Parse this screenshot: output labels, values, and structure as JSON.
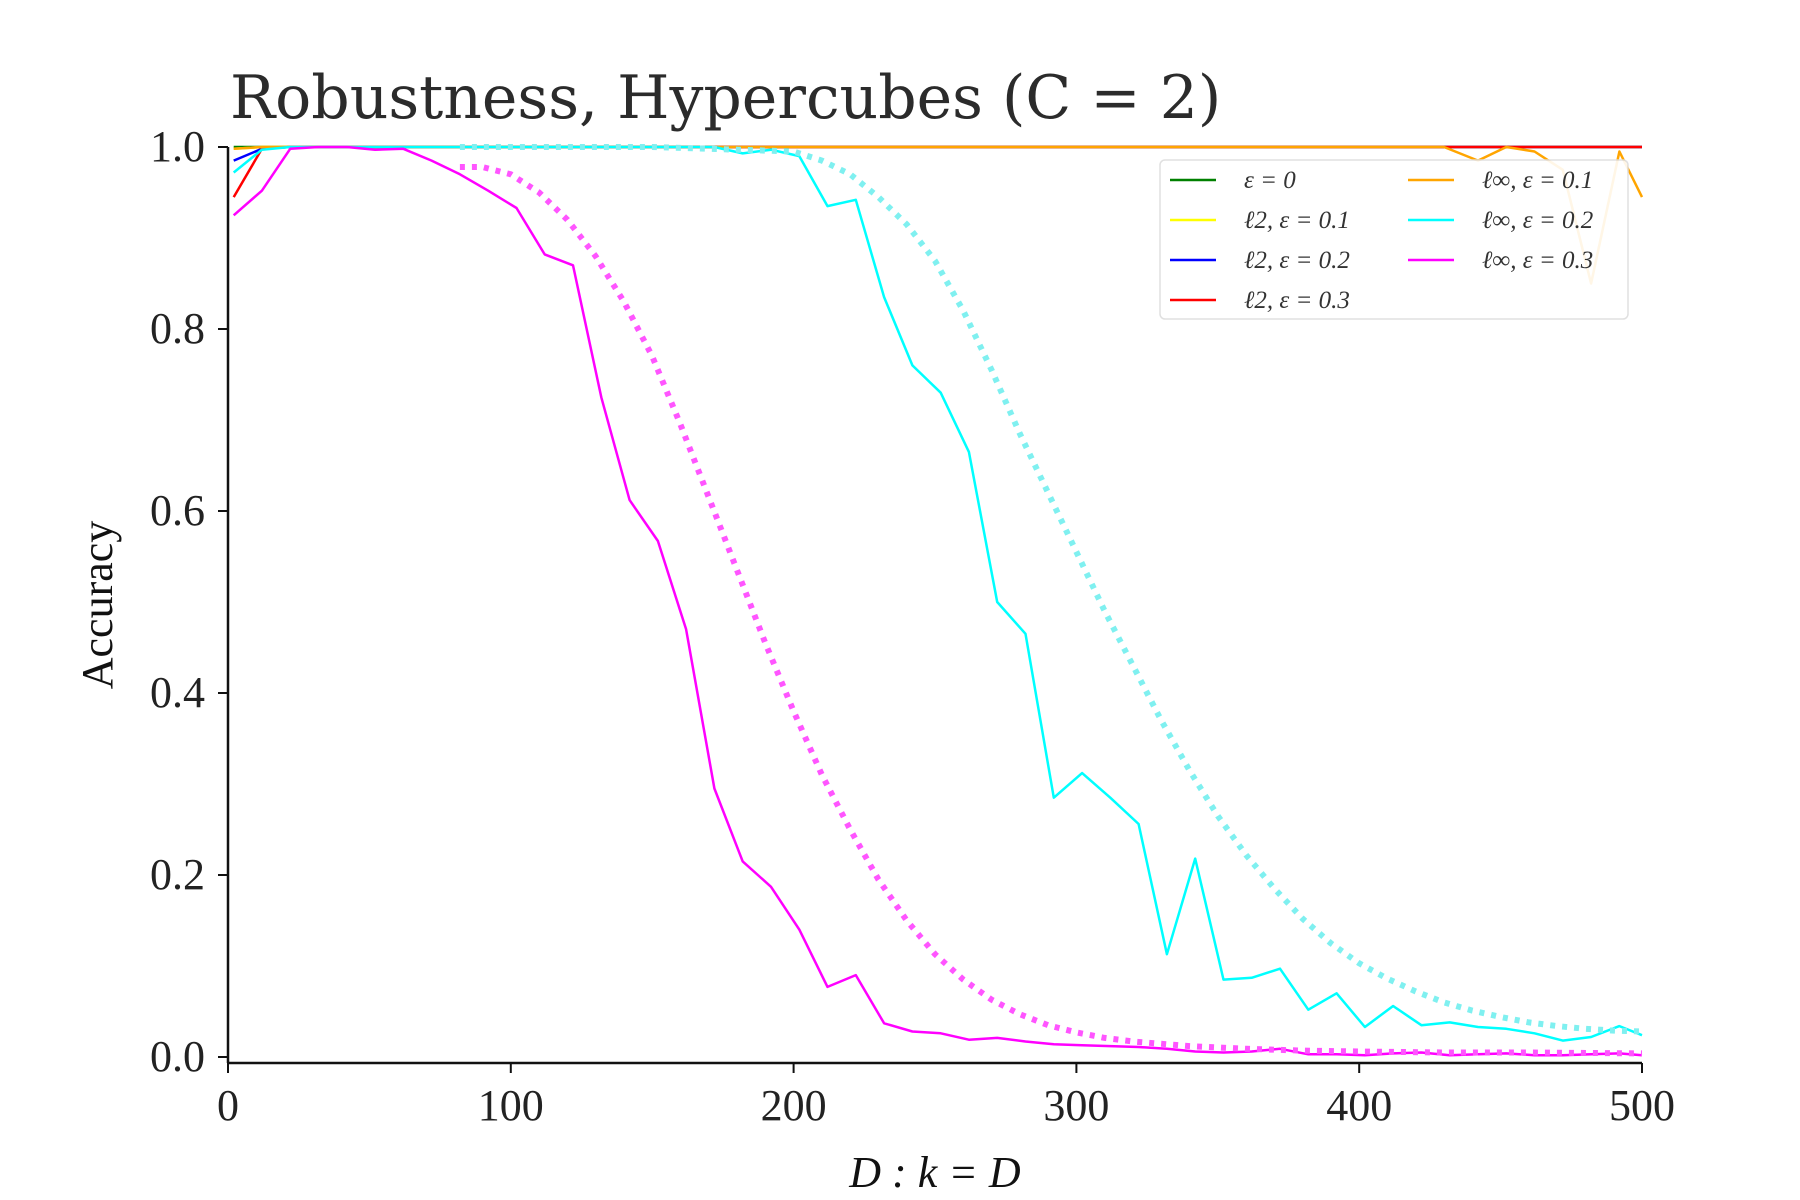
{
  "chart_data": {
    "type": "line",
    "title": "Robustness, Hypercubes (C = 2)",
    "xlabel": "D : k = D",
    "ylabel": "Accuracy",
    "xlim": [
      0,
      500
    ],
    "ylim": [
      0.0,
      1.0
    ],
    "xticks": [
      0,
      100,
      200,
      300,
      400,
      500
    ],
    "yticks": [
      0.0,
      0.2,
      0.4,
      0.6,
      0.8,
      1.0
    ],
    "x_tick_labels": [
      "0",
      "100",
      "200",
      "300",
      "400",
      "500"
    ],
    "y_tick_labels": [
      "0.0",
      "0.2",
      "0.4",
      "0.6",
      "0.8",
      "1.0"
    ],
    "grid": false,
    "legend_position": "top-right",
    "series": [
      {
        "name": "ε = 0",
        "color": "#008000",
        "style": "solid",
        "x": [
          2,
          500
        ],
        "y": [
          1.0,
          1.0
        ]
      },
      {
        "name": "ℓ2, ε = 0.1",
        "color": "#ffff00",
        "style": "solid",
        "x": [
          2,
          12,
          22,
          500
        ],
        "y": [
          0.998,
          1.0,
          1.0,
          1.0
        ]
      },
      {
        "name": "ℓ2, ε = 0.2",
        "color": "#0000ff",
        "style": "solid",
        "x": [
          2,
          12,
          22,
          500
        ],
        "y": [
          0.985,
          0.998,
          1.0,
          1.0
        ]
      },
      {
        "name": "ℓ2, ε = 0.3",
        "color": "#ff0000",
        "style": "solid",
        "x": [
          2,
          12,
          22,
          500
        ],
        "y": [
          0.945,
          0.998,
          1.0,
          1.0
        ]
      },
      {
        "name": "ℓ∞, ε = 0.1",
        "color": "#ffa500",
        "style": "solid",
        "x": [
          2,
          12,
          22,
          430,
          442,
          452,
          462,
          472,
          482,
          492,
          500
        ],
        "y": [
          0.998,
          1.0,
          1.0,
          1.0,
          0.985,
          1.0,
          0.995,
          0.975,
          0.85,
          0.995,
          0.945
        ]
      },
      {
        "name": "ℓ∞, ε = 0.2",
        "color": "#00ffff",
        "style": "solid",
        "x": [
          2,
          12,
          22,
          32,
          42,
          52,
          62,
          72,
          82,
          92,
          102,
          112,
          122,
          132,
          142,
          152,
          162,
          172,
          182,
          192,
          202,
          212,
          222,
          232,
          242,
          252,
          262,
          272,
          282,
          292,
          302,
          312,
          322,
          332,
          342,
          352,
          362,
          372,
          382,
          392,
          402,
          412,
          422,
          432,
          442,
          452,
          462,
          472,
          482,
          492,
          500
        ],
        "y": [
          0.972,
          0.997,
          1.0,
          1.0,
          1.0,
          1.0,
          1.0,
          1.0,
          1.0,
          1.0,
          1.0,
          1.0,
          1.0,
          1.0,
          1.0,
          1.0,
          1.0,
          1.0,
          0.993,
          0.997,
          0.99,
          0.935,
          0.942,
          0.835,
          0.76,
          0.73,
          0.665,
          0.5,
          0.465,
          0.285,
          0.312,
          0.285,
          0.256,
          0.113,
          0.218,
          0.085,
          0.087,
          0.097,
          0.052,
          0.07,
          0.033,
          0.056,
          0.035,
          0.038,
          0.033,
          0.031,
          0.026,
          0.018,
          0.022,
          0.034,
          0.024
        ]
      },
      {
        "name": "ℓ∞, ε = 0.3",
        "color": "#ff00ff",
        "style": "solid",
        "x": [
          2,
          12,
          22,
          32,
          42,
          52,
          62,
          72,
          82,
          92,
          102,
          112,
          122,
          132,
          142,
          152,
          162,
          172,
          182,
          192,
          202,
          212,
          222,
          232,
          242,
          252,
          262,
          272,
          282,
          292,
          302,
          312,
          322,
          332,
          342,
          352,
          362,
          372,
          382,
          392,
          402,
          412,
          422,
          432,
          442,
          452,
          462,
          472,
          482,
          492,
          500
        ],
        "y": [
          0.925,
          0.952,
          0.998,
          1.0,
          1.0,
          0.997,
          0.998,
          0.985,
          0.97,
          0.952,
          0.933,
          0.882,
          0.87,
          0.725,
          0.612,
          0.567,
          0.47,
          0.295,
          0.215,
          0.187,
          0.14,
          0.077,
          0.09,
          0.037,
          0.028,
          0.026,
          0.019,
          0.021,
          0.017,
          0.014,
          0.013,
          0.012,
          0.011,
          0.009,
          0.006,
          0.005,
          0.006,
          0.009,
          0.003,
          0.003,
          0.002,
          0.004,
          0.005,
          0.002,
          0.003,
          0.004,
          0.002,
          0.002,
          0.003,
          0.004,
          0.002
        ]
      },
      {
        "name": "",
        "color": "#7ff0f0",
        "style": "dotted",
        "x": [
          82,
          100,
          150,
          200,
          210,
          220,
          230,
          240,
          250,
          260,
          270,
          280,
          290,
          300,
          310,
          320,
          330,
          340,
          350,
          360,
          370,
          380,
          390,
          400,
          410,
          420,
          430,
          440,
          450,
          460,
          470,
          480,
          490,
          500
        ],
        "y": [
          1.0,
          1.0,
          1.0,
          0.995,
          0.985,
          0.97,
          0.945,
          0.915,
          0.875,
          0.82,
          0.755,
          0.685,
          0.62,
          0.555,
          0.49,
          0.43,
          0.37,
          0.315,
          0.265,
          0.222,
          0.185,
          0.152,
          0.125,
          0.103,
          0.086,
          0.072,
          0.06,
          0.051,
          0.044,
          0.038,
          0.034,
          0.031,
          0.029,
          0.028
        ]
      },
      {
        "name": "",
        "color": "#ff55ff",
        "style": "dotted",
        "x": [
          82,
          90,
          100,
          110,
          120,
          130,
          140,
          150,
          160,
          170,
          180,
          190,
          200,
          210,
          220,
          230,
          240,
          250,
          260,
          270,
          280,
          290,
          300,
          310,
          320,
          340,
          360,
          380,
          400,
          430,
          460,
          500
        ],
        "y": [
          0.978,
          0.978,
          0.97,
          0.95,
          0.92,
          0.88,
          0.83,
          0.77,
          0.695,
          0.615,
          0.535,
          0.455,
          0.38,
          0.31,
          0.25,
          0.195,
          0.15,
          0.113,
          0.085,
          0.063,
          0.047,
          0.035,
          0.027,
          0.021,
          0.017,
          0.012,
          0.009,
          0.007,
          0.006,
          0.005,
          0.005,
          0.004
        ]
      }
    ]
  }
}
